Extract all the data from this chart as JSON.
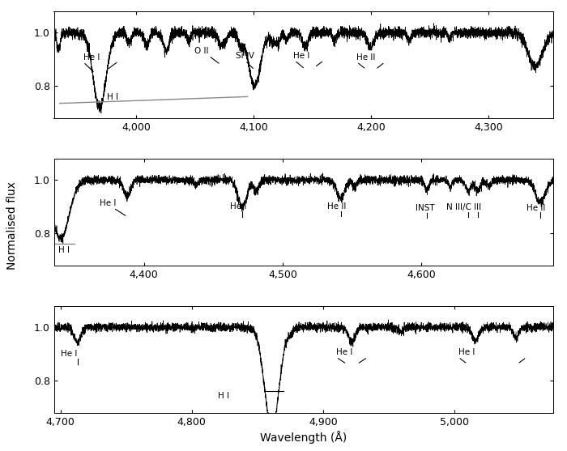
{
  "panels": [
    {
      "xlim": [
        3930,
        4355
      ],
      "xticks": [
        4000,
        4100,
        4200,
        4300
      ],
      "ylim": [
        0.68,
        1.08
      ],
      "yticks": [
        0.8,
        1.0
      ]
    },
    {
      "xlim": [
        4335,
        4695
      ],
      "xticks": [
        4400,
        4500,
        4600
      ],
      "ylim": [
        0.68,
        1.08
      ],
      "yticks": [
        0.8,
        1.0
      ]
    },
    {
      "xlim": [
        4695,
        5075
      ],
      "xticks": [
        4700,
        4800,
        4900,
        5000
      ],
      "ylim": [
        0.68,
        1.08
      ],
      "yticks": [
        0.8,
        1.0
      ]
    }
  ],
  "ylabel": "Normalised flux",
  "xlabel": "Wavelength (Å)",
  "noise_obs": 0.01,
  "noise_model": 0.003
}
